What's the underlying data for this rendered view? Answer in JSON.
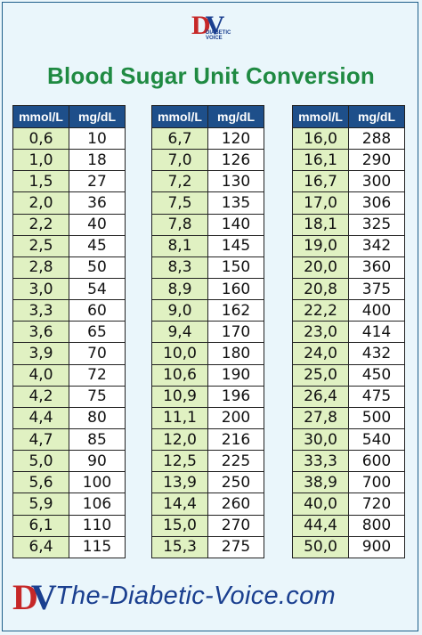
{
  "header": {
    "logo_d": "D",
    "logo_v": "V",
    "logo_text": "DIABETIC VOICE",
    "title": "Blood Sugar Unit Conversion"
  },
  "columns": {
    "mmol": "mmol/L",
    "mgdl": "mg/dL"
  },
  "tables": [
    {
      "rows": [
        [
          "0,6",
          "10"
        ],
        [
          "1,0",
          "18"
        ],
        [
          "1,5",
          "27"
        ],
        [
          "2,0",
          "36"
        ],
        [
          "2,2",
          "40"
        ],
        [
          "2,5",
          "45"
        ],
        [
          "2,8",
          "50"
        ],
        [
          "3,0",
          "54"
        ],
        [
          "3,3",
          "60"
        ],
        [
          "3,6",
          "65"
        ],
        [
          "3,9",
          "70"
        ],
        [
          "4,0",
          "72"
        ],
        [
          "4,2",
          "75"
        ],
        [
          "4,4",
          "80"
        ],
        [
          "4,7",
          "85"
        ],
        [
          "5,0",
          "90"
        ],
        [
          "5,6",
          "100"
        ],
        [
          "5,9",
          "106"
        ],
        [
          "6,1",
          "110"
        ],
        [
          "6,4",
          "115"
        ]
      ]
    },
    {
      "rows": [
        [
          "6,7",
          "120"
        ],
        [
          "7,0",
          "126"
        ],
        [
          "7,2",
          "130"
        ],
        [
          "7,5",
          "135"
        ],
        [
          "7,8",
          "140"
        ],
        [
          "8,1",
          "145"
        ],
        [
          "8,3",
          "150"
        ],
        [
          "8,9",
          "160"
        ],
        [
          "9,0",
          "162"
        ],
        [
          "9,4",
          "170"
        ],
        [
          "10,0",
          "180"
        ],
        [
          "10,6",
          "190"
        ],
        [
          "10,9",
          "196"
        ],
        [
          "11,1",
          "200"
        ],
        [
          "12,0",
          "216"
        ],
        [
          "12,5",
          "225"
        ],
        [
          "13,9",
          "250"
        ],
        [
          "14,4",
          "260"
        ],
        [
          "15,0",
          "270"
        ],
        [
          "15,3",
          "275"
        ]
      ]
    },
    {
      "rows": [
        [
          "16,0",
          "288"
        ],
        [
          "16,1",
          "290"
        ],
        [
          "16,7",
          "300"
        ],
        [
          "17,0",
          "306"
        ],
        [
          "18,1",
          "325"
        ],
        [
          "19,0",
          "342"
        ],
        [
          "20,0",
          "360"
        ],
        [
          "20,8",
          "375"
        ],
        [
          "22,2",
          "400"
        ],
        [
          "23,0",
          "414"
        ],
        [
          "24,0",
          "432"
        ],
        [
          "25,0",
          "450"
        ],
        [
          "26,4",
          "475"
        ],
        [
          "27,8",
          "500"
        ],
        [
          "30,0",
          "540"
        ],
        [
          "33,3",
          "600"
        ],
        [
          "38,9",
          "700"
        ],
        [
          "40,0",
          "720"
        ],
        [
          "44,4",
          "800"
        ],
        [
          "50,0",
          "900"
        ]
      ]
    }
  ],
  "footer": {
    "logo_d": "D",
    "logo_v": "V",
    "site": "The-Diabetic-Voice.com"
  }
}
